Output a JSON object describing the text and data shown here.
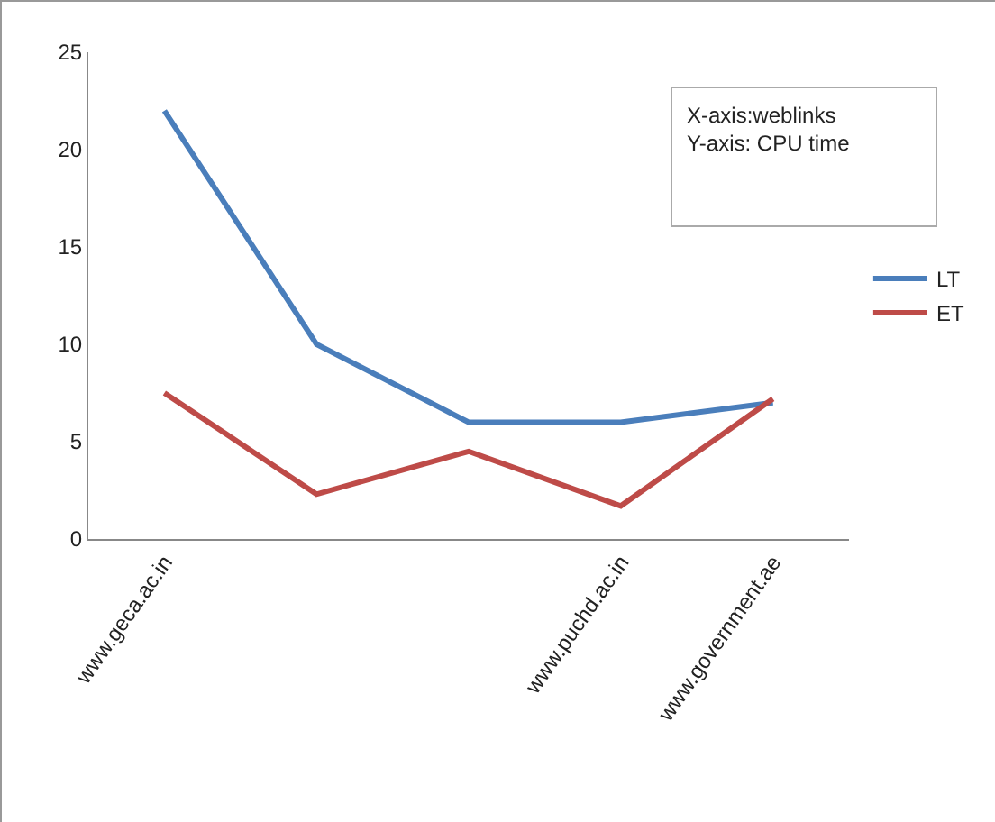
{
  "chart_data": {
    "type": "line",
    "categories": [
      "www.geca.ac.in",
      null,
      null,
      "www.puchd.ac.in",
      "www.government.ae"
    ],
    "series": [
      {
        "name": "LT",
        "color": "#4a7ebb",
        "values": [
          22,
          10,
          6,
          6,
          7
        ]
      },
      {
        "name": "ET",
        "color": "#be4b48",
        "values": [
          7.5,
          2.3,
          4.5,
          1.7,
          7.2
        ]
      }
    ],
    "ylim": [
      0,
      25
    ],
    "yticks": [
      0,
      5,
      10,
      15,
      20,
      25
    ],
    "annotations": [
      "X-axis:weblinks",
      "Y-axis: CPU time"
    ],
    "grid": false,
    "legend": "right",
    "marker": "none",
    "line_style": "solid"
  }
}
